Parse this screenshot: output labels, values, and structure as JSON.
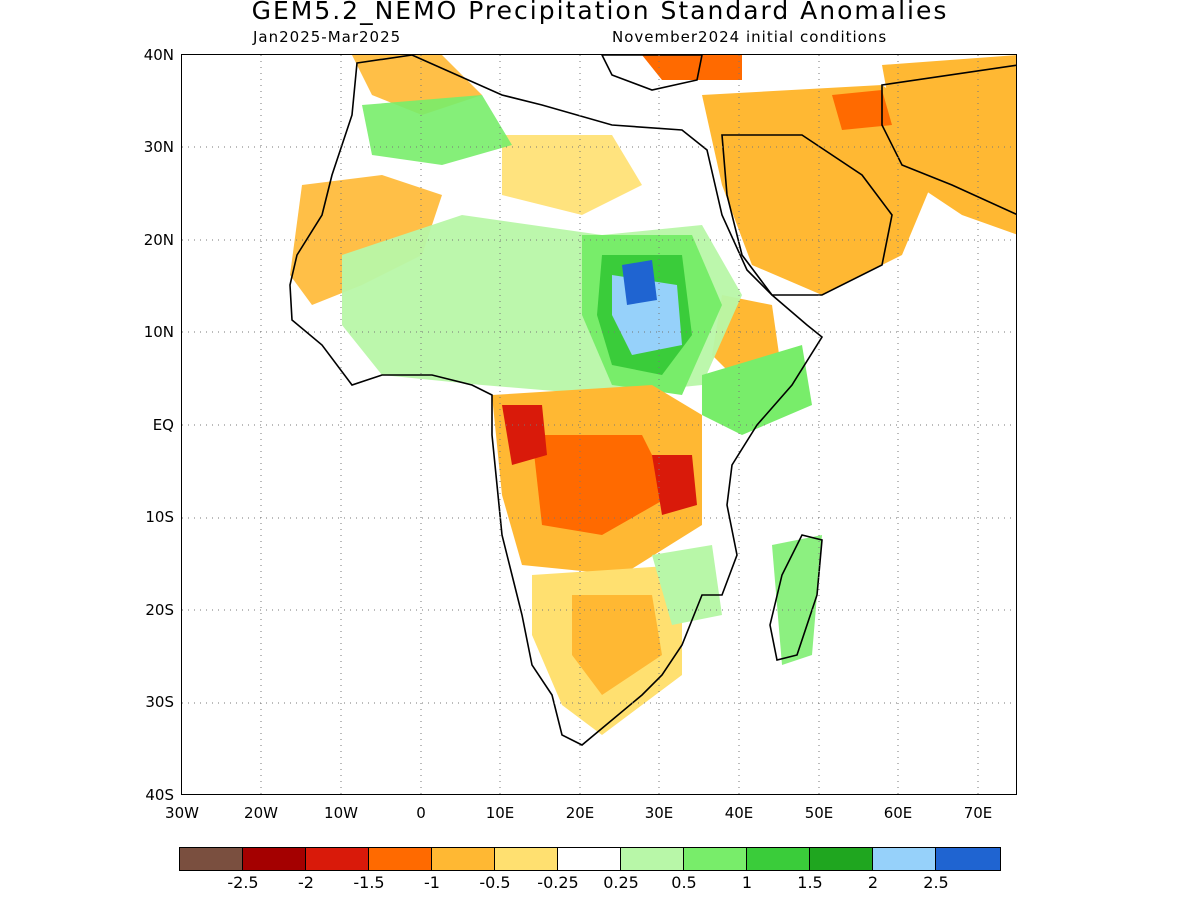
{
  "header": {
    "title": "GEM5.2_NEMO Precipitation Standard Anomalies",
    "period": "Jan2025-Mar2025",
    "init": "November2024 initial conditions"
  },
  "axes": {
    "y_labels": [
      "40N",
      "30N",
      "20N",
      "10N",
      "EQ",
      "10S",
      "20S",
      "30S",
      "40S"
    ],
    "x_labels": [
      "30W",
      "20W",
      "10W",
      "0",
      "10E",
      "20E",
      "30E",
      "40E",
      "50E",
      "60E",
      "70E"
    ],
    "lat_range": [
      -40,
      40
    ],
    "lon_range": [
      -30,
      75
    ],
    "grid": "dotted"
  },
  "colorbar": {
    "colors": [
      "#7a4f3f",
      "#a40000",
      "#d91a0a",
      "#ff6a00",
      "#ffb833",
      "#ffe070",
      "#ffffff",
      "#b8f7a8",
      "#78ed6a",
      "#3acc3a",
      "#1fa61f",
      "#96d1fa",
      "#1f64d1"
    ],
    "labels": [
      "-2.5",
      "-2",
      "-1.5",
      "-1",
      "-0.5",
      "-0.25",
      "0.25",
      "0.5",
      "1",
      "1.5",
      "2",
      "2.5"
    ]
  },
  "colors": {
    "coast": "#000000"
  }
}
